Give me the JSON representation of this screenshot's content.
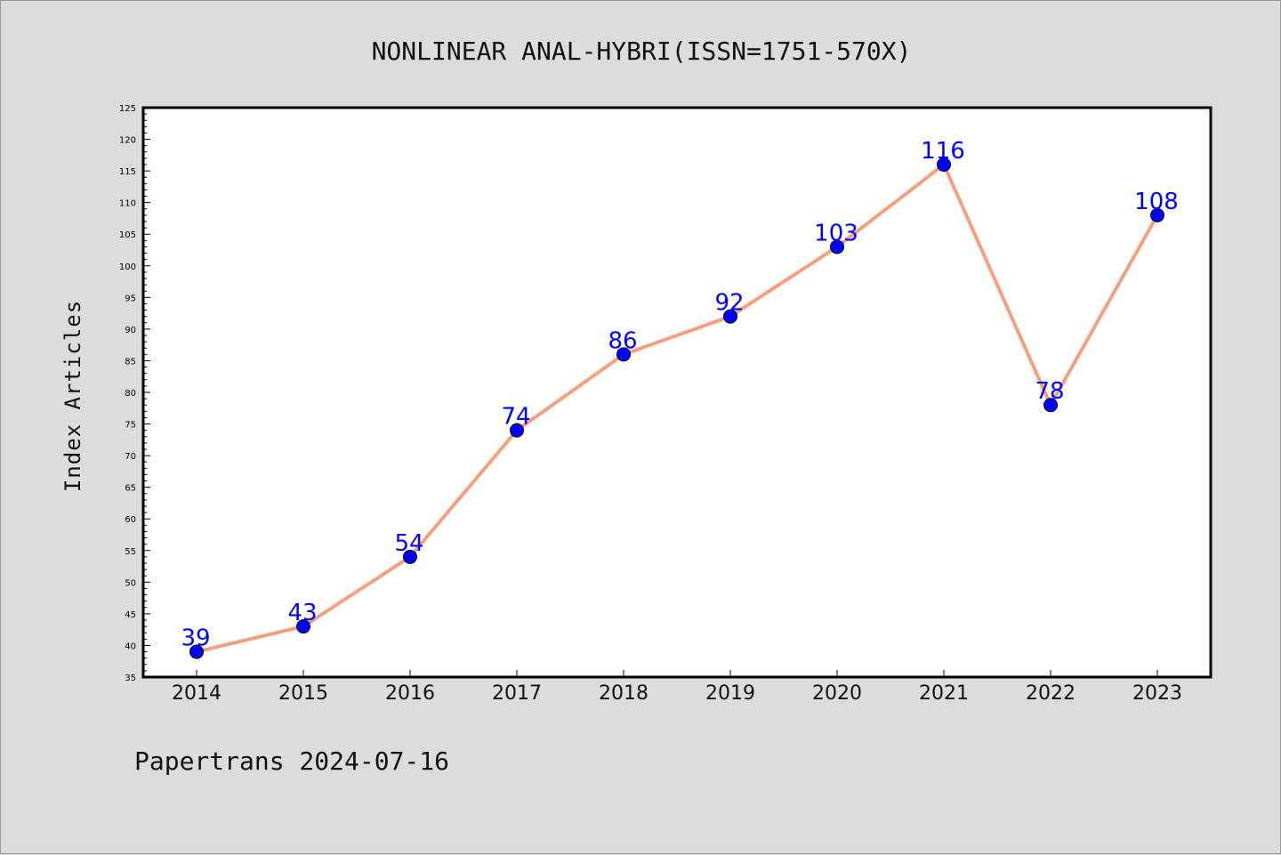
{
  "chart_data": {
    "type": "line",
    "title": "NONLINEAR ANAL-HYBRI(ISSN=1751-570X)",
    "xlabel": "",
    "ylabel": "Index Articles",
    "categories": [
      "2014",
      "2015",
      "2016",
      "2017",
      "2018",
      "2019",
      "2020",
      "2021",
      "2022",
      "2023"
    ],
    "series": [
      {
        "values": [
          39,
          43,
          54,
          74,
          86,
          92,
          103,
          116,
          78,
          108
        ]
      }
    ],
    "ylim": [
      35,
      125
    ],
    "ytick_step": 5,
    "grid": false,
    "line_color": "#f4a07f",
    "marker_color": "#0000ff",
    "label_color": "#0000ff",
    "plot_background": "#ffffff",
    "page_background": "#dcdcdc"
  },
  "footer": {
    "text": "Papertrans 2024-07-16"
  }
}
